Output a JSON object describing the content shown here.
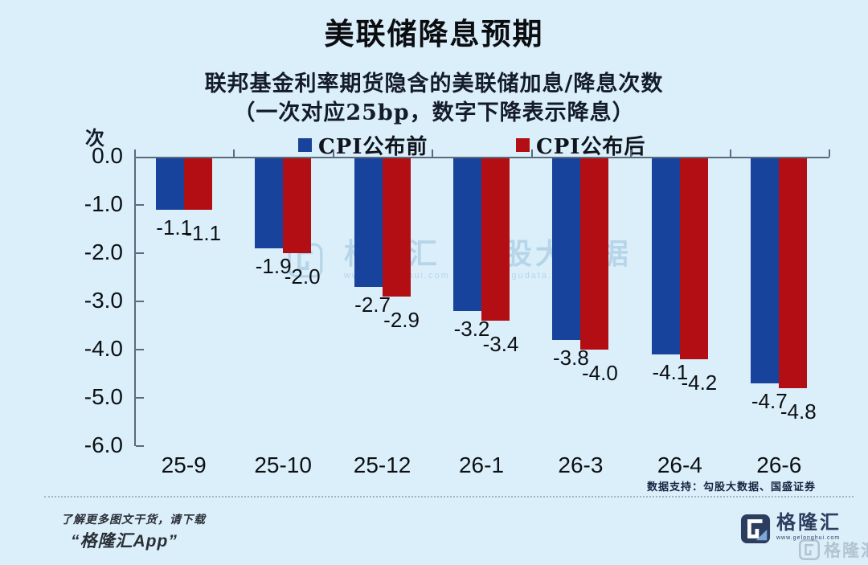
{
  "chart_data": {
    "type": "bar",
    "title": "美联储降息预期",
    "subtitle_line1": "联邦基金利率期货隐含的美联储加息/降息次数",
    "subtitle_line2": "（一次对应25bp，数字下降表示降息）",
    "unit_label": "次",
    "categories": [
      "25-9",
      "25-10",
      "25-12",
      "26-1",
      "26-3",
      "26-4",
      "26-6"
    ],
    "series": [
      {
        "name": "CPI公布前",
        "color": "#17439d",
        "values": [
          -1.1,
          -1.9,
          -2.7,
          -3.2,
          -3.8,
          -4.1,
          -4.7
        ]
      },
      {
        "name": "CPI公布后",
        "color": "#b20e13",
        "values": [
          -1.1,
          -2.0,
          -2.9,
          -3.4,
          -4.0,
          -4.2,
          -4.8
        ]
      }
    ],
    "value_labels": {
      "CPI公布前": [
        "-1.1",
        "-1.9",
        "-2.7",
        "-3.2",
        "-3.8",
        "-4.1",
        "-4.7"
      ],
      "CPI公布后": [
        "-1.1",
        "-2.0",
        "-2.9",
        "-3.4",
        "-4.0",
        "-4.2",
        "-4.8"
      ]
    },
    "ylim": [
      -6.0,
      0.0
    ],
    "ytick_labels": [
      "0.0",
      "-1.0",
      "-2.0",
      "-3.0",
      "-4.0",
      "-5.0",
      "-6.0"
    ],
    "grid": false,
    "legend_position": "top"
  },
  "colors": {
    "background": "#dbeffb",
    "bar_blue": "#17439d",
    "bar_red": "#b20e13",
    "axis": "#5b6b79"
  },
  "watermark_center": {
    "brand": "格隆汇",
    "brand_url": "www.gelonghui.com",
    "data_brand": "勾股大数据",
    "data_url": "www.gogudata.com"
  },
  "footer": {
    "source_note": "数据支持：勾股大数据、国盛证券",
    "promo_line1": "了解更多图文干货，请下载",
    "promo_line2": "“格隆汇App”",
    "logo_name": "格隆汇",
    "logo_url": "www.gelonghui.com",
    "corner_watermark": "格隆汇"
  }
}
